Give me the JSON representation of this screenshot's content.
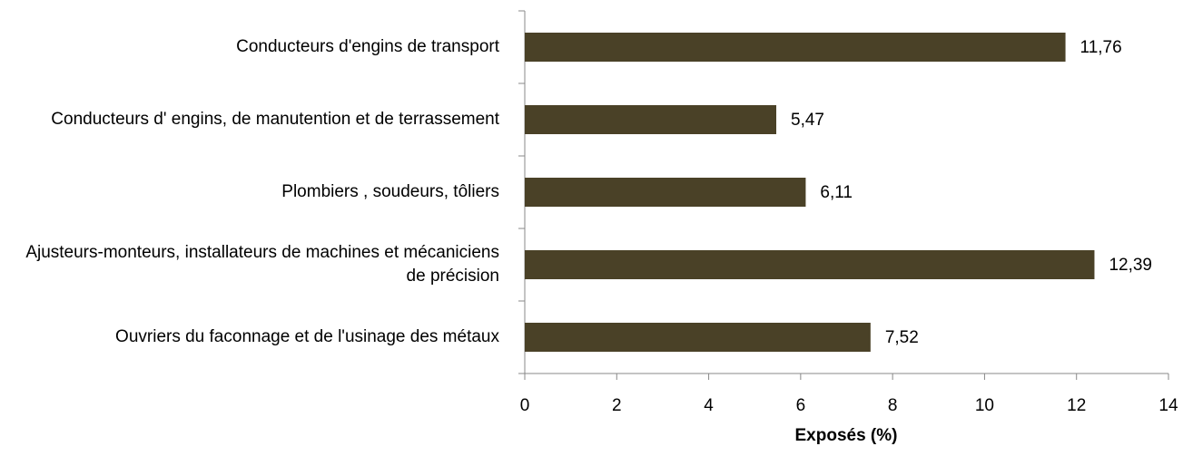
{
  "chart_data": {
    "type": "bar",
    "orientation": "horizontal",
    "x_label": "Exposés (%)",
    "categories": [
      "Conducteurs d'engins de transport",
      "Conducteurs d' engins, de manutention et de terrassement",
      "Plombiers , soudeurs, tôliers",
      "Ajusteurs-monteurs, installateurs de machines et mécaniciens de précision",
      "Ouvriers du faconnage et de l'usinage des métaux"
    ],
    "values": [
      11.76,
      5.47,
      6.11,
      12.39,
      7.52
    ],
    "value_labels": [
      "11,76",
      "5,47",
      "6,11",
      "12,39",
      "7,52"
    ],
    "color": "#4a4127",
    "xlim": [
      0,
      14
    ],
    "xticks": [
      0,
      2,
      4,
      6,
      8,
      10,
      12,
      14
    ]
  }
}
